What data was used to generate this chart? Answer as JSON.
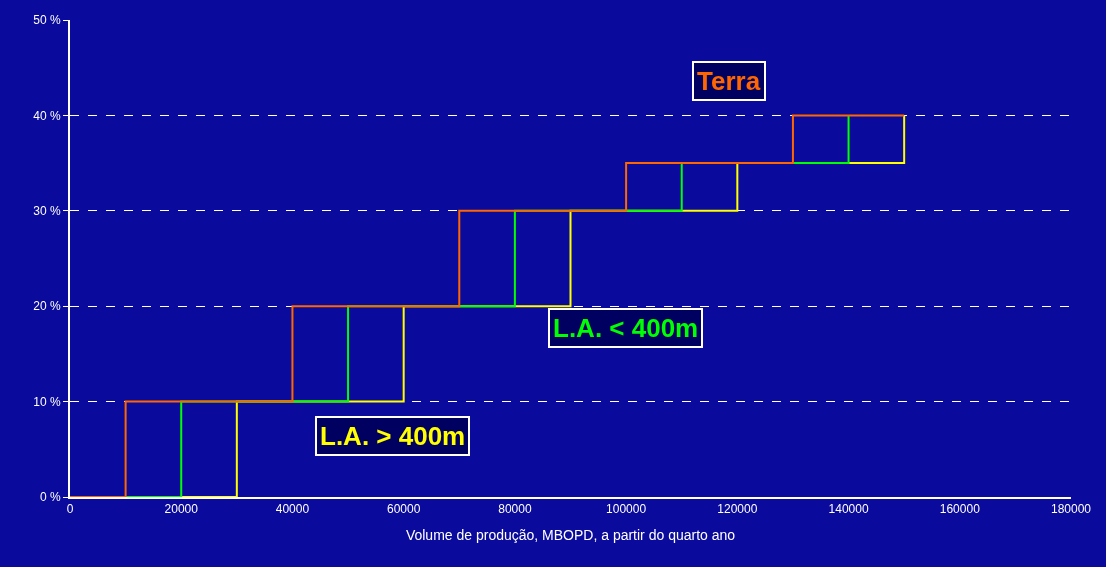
{
  "chart_data": {
    "type": "step",
    "xlabel": "Volume de produção, MBOPD, a partir do quarto ano",
    "xlim": [
      0,
      180000
    ],
    "xticks": [
      0,
      20000,
      40000,
      60000,
      80000,
      100000,
      120000,
      140000,
      160000,
      180000
    ],
    "ylim": [
      0,
      50
    ],
    "yticks": [
      {
        "value": 0,
        "label": "0 %"
      },
      {
        "value": 10,
        "label": "10 %"
      },
      {
        "value": 20,
        "label": "20 %"
      },
      {
        "value": 30,
        "label": "30 %"
      },
      {
        "value": 40,
        "label": "40 %"
      },
      {
        "value": 50,
        "label": "50 %"
      }
    ],
    "grid": "y",
    "legend": false,
    "line_style": "solid",
    "series": [
      {
        "name": "L.A. > 400m",
        "color": "#ffff00",
        "x": [
          0,
          30000,
          60000,
          90000,
          120000,
          150000
        ],
        "values": [
          0,
          10,
          20,
          30,
          35,
          40
        ]
      },
      {
        "name": "L.A. < 400m",
        "color": "#00ff00",
        "x": [
          0,
          20000,
          50000,
          80000,
          110000,
          140000
        ],
        "values": [
          0,
          10,
          20,
          30,
          35,
          40
        ]
      },
      {
        "name": "Terra",
        "color": "#ff6600",
        "x": [
          0,
          10000,
          40000,
          70000,
          100000,
          130000,
          150000
        ],
        "values": [
          0,
          10,
          20,
          30,
          35,
          40,
          40
        ]
      }
    ]
  }
}
